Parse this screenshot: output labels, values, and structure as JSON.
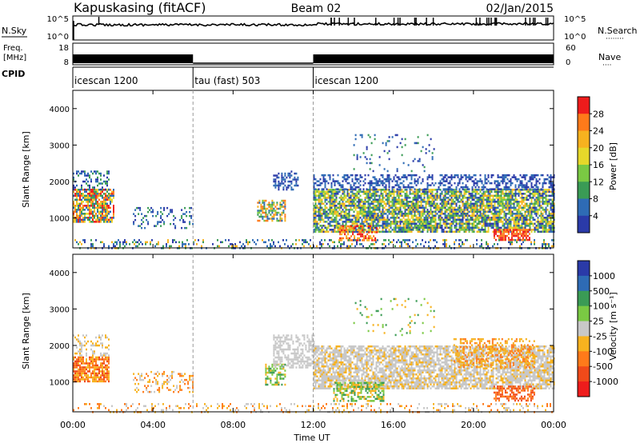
{
  "header": {
    "station": "Kapuskasing (fitACF)",
    "beam": "Beam 02",
    "date": "02/Jan/2015"
  },
  "strips": {
    "nsky_label": "N.Sky",
    "nsearch_label": "N.Search",
    "nsearch_dots": "········",
    "log_high": "10^5",
    "log_low": "10^0",
    "freq_label_1": "Freq.",
    "freq_label_2": "[MHz]",
    "freq_ticks": [
      "18",
      "8"
    ],
    "nave_label": "Nave",
    "nave_dots": "····",
    "nave_ticks": [
      "60",
      "0"
    ],
    "cpid_label": "CPID",
    "cpid_segments": [
      {
        "label": "icescan 1200",
        "start_h": 0,
        "end_h": 6
      },
      {
        "label": "tau (fast) 503",
        "start_h": 6,
        "end_h": 12
      },
      {
        "label": "icescan 1200",
        "start_h": 12,
        "end_h": 24
      }
    ],
    "freq_segments": [
      {
        "start_h": 0,
        "end_h": 6,
        "freq": 10.9
      },
      {
        "start_h": 6,
        "end_h": 12,
        "freq": 8
      },
      {
        "start_h": 12,
        "end_h": 24,
        "freq": 10.9
      }
    ]
  },
  "chart_data": [
    {
      "type": "heatmap",
      "name": "power",
      "ylabel": "Slant Range [km]",
      "yticks": [
        1000,
        2000,
        3000,
        4000
      ],
      "ylim": [
        180,
        4500
      ],
      "xlim": [
        0,
        24
      ],
      "colorbar_label": "Power [dB]",
      "colorbar_ticks": [
        "28",
        "24",
        "20",
        "16",
        "12",
        "8",
        "4"
      ],
      "colorbar_colors": [
        "#ee1c1c",
        "#ff7a1a",
        "#f7b21f",
        "#e6d82a",
        "#7ac943",
        "#3a9b55",
        "#2e6bb5",
        "#2a3aa8"
      ],
      "regions": [
        {
          "t0": 0.0,
          "t1": 2.0,
          "r0": 900,
          "r1": 1800,
          "colors": [
            0,
            1,
            2,
            3,
            5,
            6
          ],
          "density": 0.75
        },
        {
          "t0": 0.0,
          "t1": 1.8,
          "r0": 1800,
          "r1": 2300,
          "colors": [
            5,
            6,
            7
          ],
          "density": 0.35
        },
        {
          "t0": 3.0,
          "t1": 6.0,
          "r0": 700,
          "r1": 1300,
          "colors": [
            6,
            7,
            5
          ],
          "density": 0.25
        },
        {
          "t0": 9.2,
          "t1": 10.6,
          "r0": 900,
          "r1": 1500,
          "colors": [
            1,
            2,
            4,
            5,
            6
          ],
          "density": 0.6
        },
        {
          "t0": 10.0,
          "t1": 11.2,
          "r0": 1800,
          "r1": 2300,
          "colors": [
            6,
            7
          ],
          "density": 0.45
        },
        {
          "t0": 12.0,
          "t1": 24.0,
          "r0": 600,
          "r1": 1800,
          "colors": [
            6,
            7,
            5,
            4,
            3,
            2
          ],
          "density": 0.8
        },
        {
          "t0": 12.0,
          "t1": 24.0,
          "r0": 1800,
          "r1": 2200,
          "colors": [
            6,
            7
          ],
          "density": 0.45
        },
        {
          "t0": 14.0,
          "t1": 18.0,
          "r0": 2300,
          "r1": 3300,
          "colors": [
            6,
            7,
            5
          ],
          "density": 0.08
        },
        {
          "t0": 13.3,
          "t1": 15.2,
          "r0": 400,
          "r1": 800,
          "colors": [
            1,
            2,
            0
          ],
          "density": 0.55
        },
        {
          "t0": 21.0,
          "t1": 22.8,
          "r0": 380,
          "r1": 700,
          "colors": [
            0,
            1
          ],
          "density": 0.75
        },
        {
          "t0": 0.0,
          "t1": 24.0,
          "r0": 180,
          "r1": 420,
          "colors": [
            6,
            7,
            5,
            2
          ],
          "density": 0.25
        }
      ]
    },
    {
      "type": "heatmap",
      "name": "velocity",
      "ylabel": "Slant Range [km]",
      "yticks": [
        1000,
        2000,
        3000,
        4000
      ],
      "ylim": [
        180,
        4500
      ],
      "xlim": [
        0,
        24
      ],
      "xlabel": "Time UT",
      "xticks": [
        "00:00",
        "04:00",
        "08:00",
        "12:00",
        "16:00",
        "20:00",
        "00:00"
      ],
      "colorbar_label": "Velocity [m s⁻¹]",
      "colorbar_ticks": [
        "1000",
        "500",
        "100",
        "25",
        "-25",
        "-100",
        "-500",
        "-1000"
      ],
      "colorbar_colors": [
        "#2a3aa8",
        "#2e6bb5",
        "#3a9b55",
        "#7ac943",
        "#c8c8c8",
        "#f7b21f",
        "#ff7a1a",
        "#f04a1a",
        "#ee1c1c"
      ],
      "regions": [
        {
          "t0": 0.0,
          "t1": 1.8,
          "r0": 1000,
          "r1": 1700,
          "colors": [
            6,
            7,
            5
          ],
          "density": 0.8
        },
        {
          "t0": 0.0,
          "t1": 1.8,
          "r0": 1700,
          "r1": 2300,
          "colors": [
            4,
            5
          ],
          "density": 0.35
        },
        {
          "t0": 3.0,
          "t1": 6.0,
          "r0": 700,
          "r1": 1300,
          "colors": [
            5,
            6,
            4
          ],
          "density": 0.25
        },
        {
          "t0": 9.6,
          "t1": 10.6,
          "r0": 900,
          "r1": 1500,
          "colors": [
            2,
            3,
            5
          ],
          "density": 0.55
        },
        {
          "t0": 10.0,
          "t1": 12.0,
          "r0": 1400,
          "r1": 2300,
          "colors": [
            4
          ],
          "density": 0.55
        },
        {
          "t0": 12.0,
          "t1": 24.0,
          "r0": 800,
          "r1": 2000,
          "colors": [
            4,
            4,
            4,
            5
          ],
          "density": 0.75
        },
        {
          "t0": 13.0,
          "t1": 15.5,
          "r0": 500,
          "r1": 1000,
          "colors": [
            3,
            2,
            5
          ],
          "density": 0.55
        },
        {
          "t0": 14.0,
          "t1": 18.0,
          "r0": 2300,
          "r1": 3300,
          "colors": [
            2,
            3,
            5
          ],
          "density": 0.08
        },
        {
          "t0": 19.0,
          "t1": 23.0,
          "r0": 1400,
          "r1": 2200,
          "colors": [
            5,
            6
          ],
          "density": 0.4
        },
        {
          "t0": 21.0,
          "t1": 23.0,
          "r0": 500,
          "r1": 900,
          "colors": [
            6,
            7
          ],
          "density": 0.55
        },
        {
          "t0": 0.0,
          "t1": 24.0,
          "r0": 180,
          "r1": 420,
          "colors": [
            5,
            4,
            6
          ],
          "density": 0.2
        }
      ]
    }
  ]
}
